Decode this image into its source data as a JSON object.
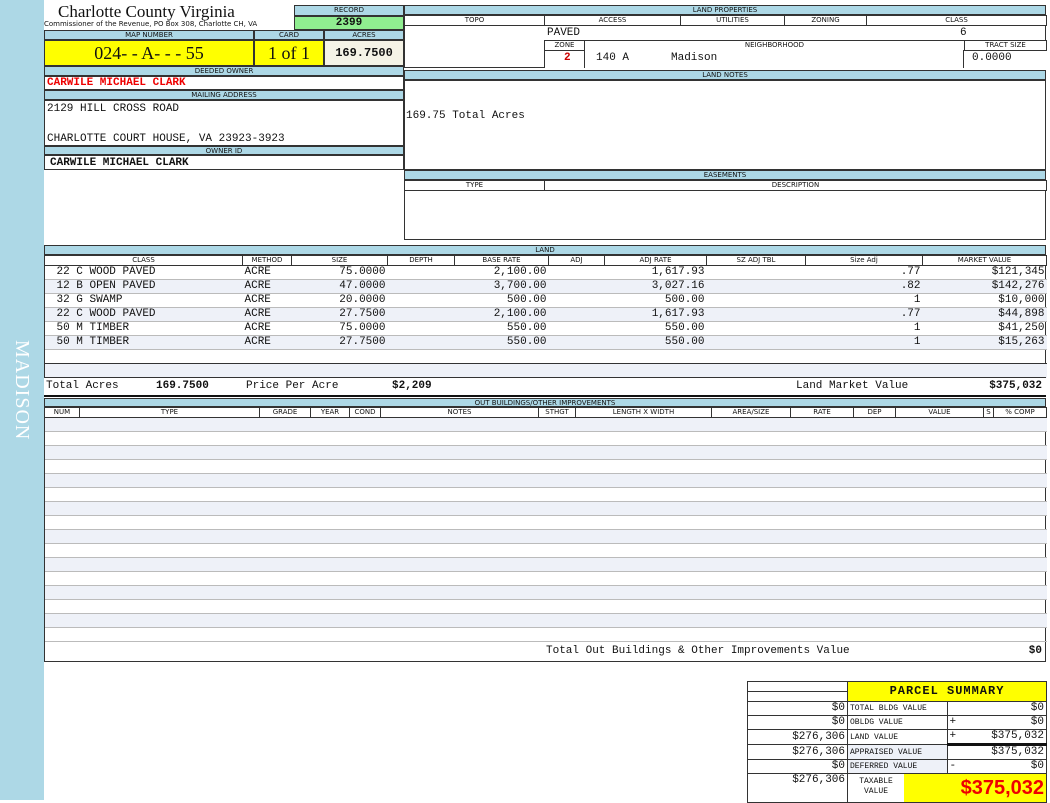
{
  "sidebar": {
    "label": "MADISON"
  },
  "header": {
    "title": "Charlotte County Virginia",
    "subtitle": "Commissioner of the Revenue, PO Box 308, Charlotte CH, VA",
    "record_label": "RECORD",
    "record": "2399",
    "map_number_label": "MAP NUMBER",
    "map_number": "024- - A- - - 55",
    "card_label": "CARD",
    "card": "1 of 1",
    "acres_label": "ACRES",
    "acres": "169.7500"
  },
  "owner": {
    "deeded_label": "DEEDED OWNER",
    "deeded": "CARWILE MICHAEL CLARK",
    "mailing_label": "MAILING ADDRESS",
    "address1": "2129 HILL CROSS ROAD",
    "address2": "CHARLOTTE COURT HOUSE, VA 23923-3923",
    "owner_id_label": "OWNER ID",
    "owner_id": "CARWILE MICHAEL CLARK"
  },
  "land_properties": {
    "title": "LAND PROPERTIES",
    "topo": "TOPO",
    "access": "ACCESS",
    "utilities": "UTILITIES",
    "zoning": "ZONING",
    "class": "CLASS",
    "access_value": "PAVED",
    "class_value": "6",
    "zone_label": "ZONE",
    "neighborhood_label": "NEIGHBORHOOD",
    "tract_label": "TRACT SIZE",
    "zone": "2",
    "neighborhood_code": "140 A",
    "neighborhood": "Madison",
    "tract_size": "0.0000"
  },
  "land_notes": {
    "title": "LAND NOTES",
    "text": "169.75 Total Acres"
  },
  "easements": {
    "title": "EASEMENTS",
    "type": "TYPE",
    "description": "DESCRIPTION"
  },
  "land": {
    "title": "LAND",
    "columns": [
      "CLASS",
      "METHOD",
      "SIZE",
      "DEPTH",
      "BASE RATE",
      "ADJ",
      "ADJ RATE",
      "SZ ADJ TBL",
      "Size Adj",
      "MARKET VALUE"
    ],
    "rows": [
      [
        "22 C WOOD PAVED",
        "ACRE",
        "75.0000",
        "",
        "2,100.00",
        "",
        "1,617.93",
        "",
        ".77",
        "$121,345"
      ],
      [
        "12 B OPEN PAVED",
        "ACRE",
        "47.0000",
        "",
        "3,700.00",
        "",
        "3,027.16",
        "",
        ".82",
        "$142,276"
      ],
      [
        "32 G SWAMP",
        "ACRE",
        "20.0000",
        "",
        "500.00",
        "",
        "500.00",
        "",
        "1",
        "$10,000"
      ],
      [
        "22 C WOOD PAVED",
        "ACRE",
        "27.7500",
        "",
        "2,100.00",
        "",
        "1,617.93",
        "",
        ".77",
        "$44,898"
      ],
      [
        "50 M TIMBER",
        "ACRE",
        "75.0000",
        "",
        "550.00",
        "",
        "550.00",
        "",
        "1",
        "$41,250"
      ],
      [
        "50 M TIMBER",
        "ACRE",
        "27.7500",
        "",
        "550.00",
        "",
        "550.00",
        "",
        "1",
        "$15,263"
      ]
    ],
    "total_acres_label": "Total Acres",
    "total_acres": "169.7500",
    "price_per_acre_label": "Price Per Acre",
    "price_per_acre": "$2,209",
    "market_value_label": "Land Market Value",
    "market_value": "$375,032"
  },
  "outbuildings": {
    "title": "OUT BUILDINGS/OTHER IMPROVEMENTS",
    "columns": [
      "NUM",
      "TYPE",
      "GRADE",
      "YEAR",
      "COND",
      "NOTES",
      "STHGT",
      "LENGTH X WIDTH",
      "AREA/SIZE",
      "RATE",
      "DEP",
      "VALUE",
      "S",
      "% COMP"
    ],
    "total_label": "Total Out Buildings & Other Improvements Value",
    "total": "$0"
  },
  "summary": {
    "title": "PARCEL SUMMARY",
    "rows": [
      {
        "prior": "$0",
        "label": "TOTAL BLDG VALUE",
        "sign": "",
        "value": "$0"
      },
      {
        "prior": "$0",
        "label": "OBLDG VALUE",
        "sign": "+",
        "value": "$0"
      },
      {
        "prior": "$276,306",
        "label": "LAND VALUE",
        "sign": "+",
        "value": "$375,032"
      },
      {
        "prior": "$276,306",
        "label": "APPRAISED VALUE",
        "sign": "",
        "value": "$375,032"
      },
      {
        "prior": "$0",
        "label": "DEFERRED VALUE",
        "sign": "-",
        "value": "$0"
      }
    ],
    "taxable_prior": "$276,306",
    "taxable_label": "TAXABLE VALUE",
    "taxable": "$375,032"
  }
}
